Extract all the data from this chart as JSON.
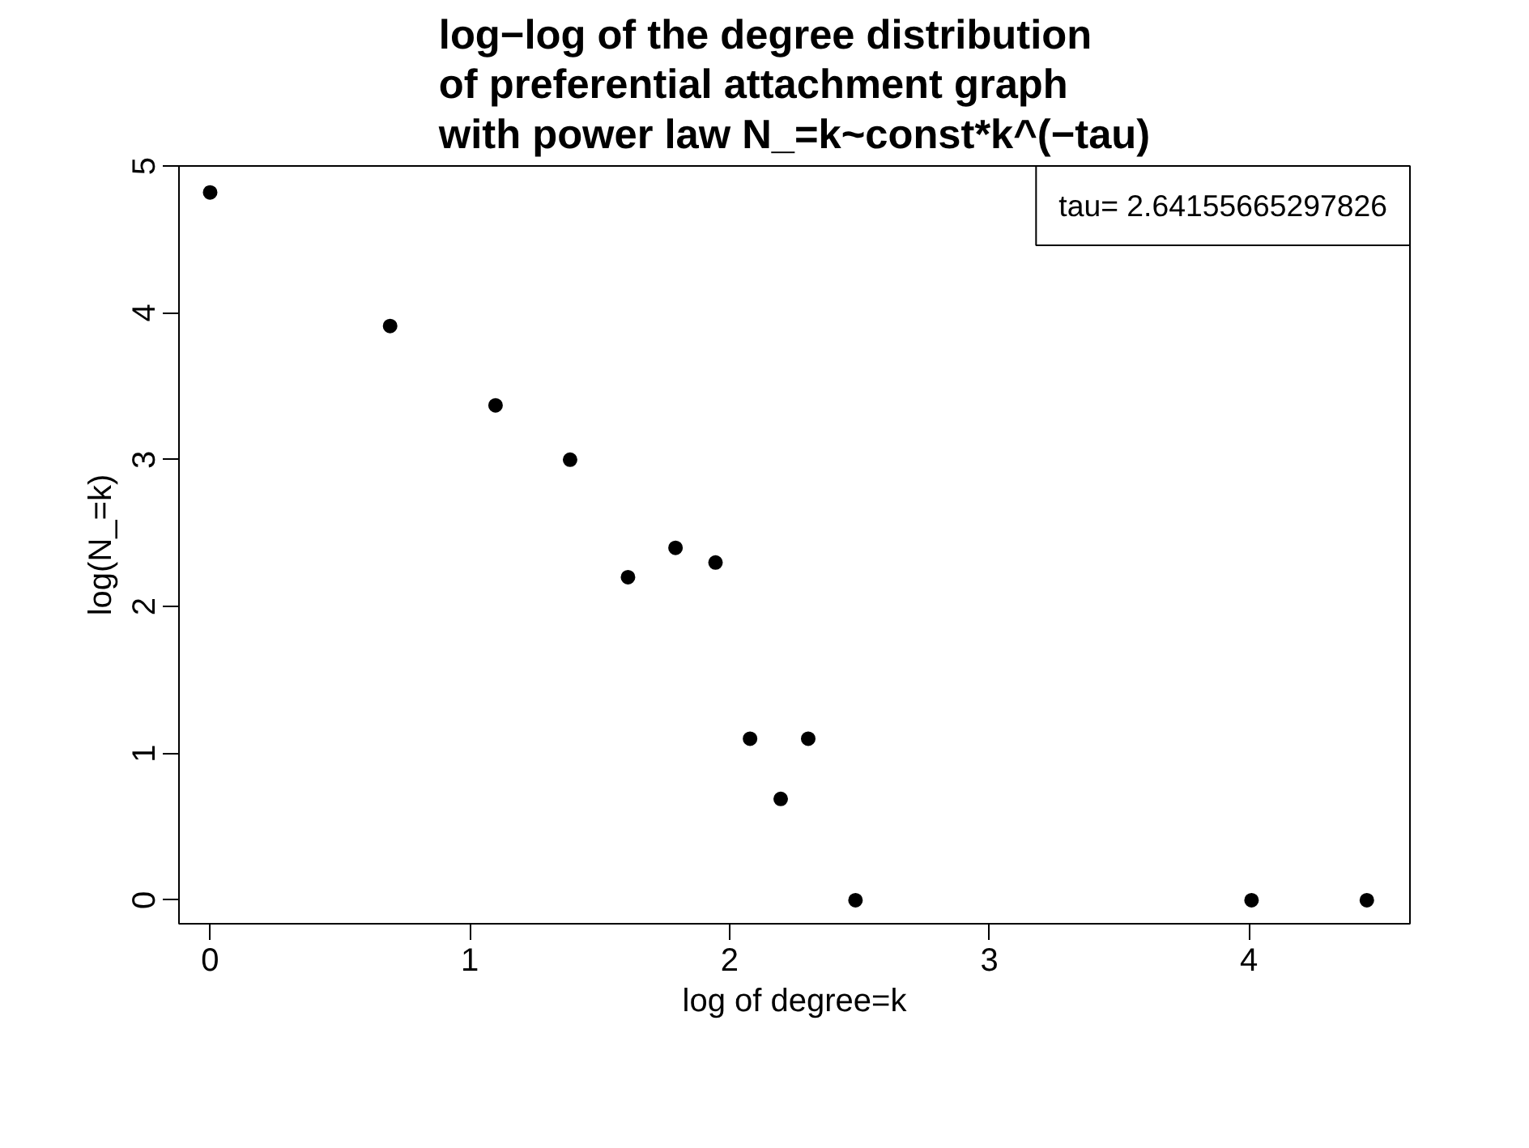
{
  "chart_data": {
    "type": "scatter",
    "title": "log−log of the degree distribution\nof preferential attachment graph\nwith power law N_=k~const*k^(−tau)",
    "xlabel": "log of degree=k",
    "ylabel": "log(N_=k)",
    "x": [
      0,
      0.693,
      1.099,
      1.386,
      1.609,
      1.792,
      1.946,
      2.079,
      2.197,
      2.303,
      2.485,
      4.01,
      4.454
    ],
    "values": [
      4.82,
      3.91,
      3.37,
      3.0,
      2.2,
      2.4,
      2.3,
      1.1,
      0.69,
      1.1,
      0,
      0,
      0
    ],
    "color": "#000000",
    "marker": "circle",
    "grid": false,
    "xlim": [
      -0.12,
      4.62
    ],
    "ylim": [
      -0.16,
      5.0
    ],
    "xticks": [
      0,
      1,
      2,
      3,
      4
    ],
    "yticks": [
      0,
      1,
      2,
      3,
      4,
      5
    ],
    "annotations": [
      "tau= 2.64155665297826"
    ]
  }
}
